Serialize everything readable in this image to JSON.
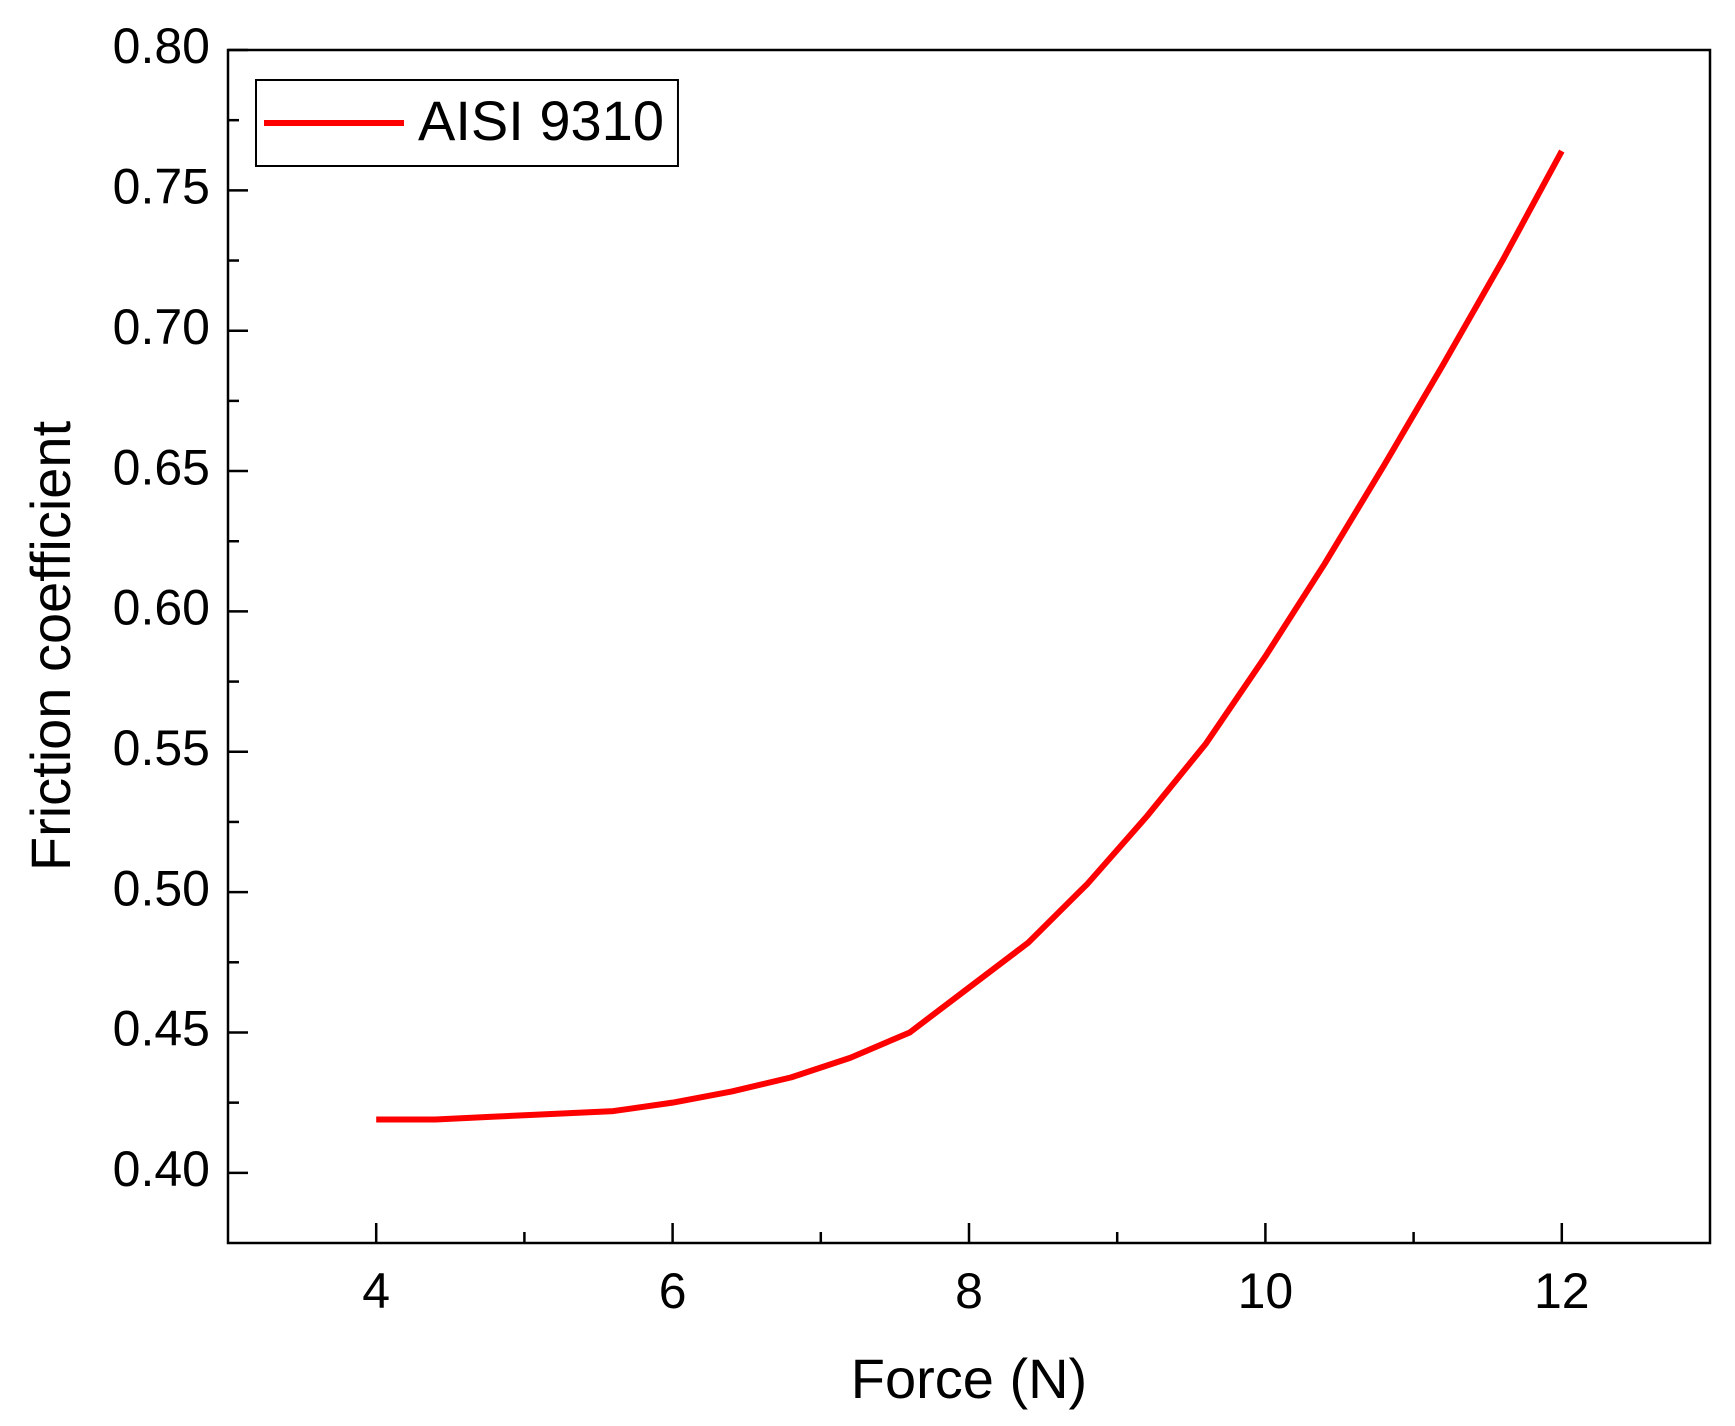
{
  "chart_data": {
    "type": "line",
    "x_label": "Force (N)",
    "y_label": "Friction coefficient",
    "x": [
      4,
      4.4,
      4.8,
      5.2,
      5.6,
      6,
      6.4,
      6.8,
      7.2,
      7.6,
      8,
      8.4,
      8.8,
      9.2,
      9.6,
      10,
      10.4,
      10.8,
      11.2,
      11.6,
      12
    ],
    "series": [
      {
        "name": "AISI 9310",
        "color": "#ff0000",
        "values": [
          0.419,
          0.419,
          0.42,
          0.421,
          0.422,
          0.425,
          0.429,
          0.434,
          0.441,
          0.45,
          0.466,
          0.482,
          0.503,
          0.527,
          0.553,
          0.584,
          0.617,
          0.652,
          0.688,
          0.725,
          0.764
        ]
      }
    ],
    "xlim": [
      3,
      13
    ],
    "xticks": [
      4,
      6,
      8,
      10,
      12
    ],
    "ylim": [
      0.375,
      0.8
    ],
    "yticks": [
      {
        "value": 0.4,
        "label": "0.40"
      },
      {
        "value": 0.45,
        "label": "0.45"
      },
      {
        "value": 0.5,
        "label": "0.50"
      },
      {
        "value": 0.55,
        "label": "0.55"
      },
      {
        "value": 0.6,
        "label": "0.60"
      },
      {
        "value": 0.65,
        "label": "0.65"
      },
      {
        "value": 0.7,
        "label": "0.70"
      },
      {
        "value": 0.75,
        "label": "0.75"
      },
      {
        "value": 0.8,
        "label": "0.80"
      }
    ],
    "grid": false,
    "legend": "upper left"
  }
}
